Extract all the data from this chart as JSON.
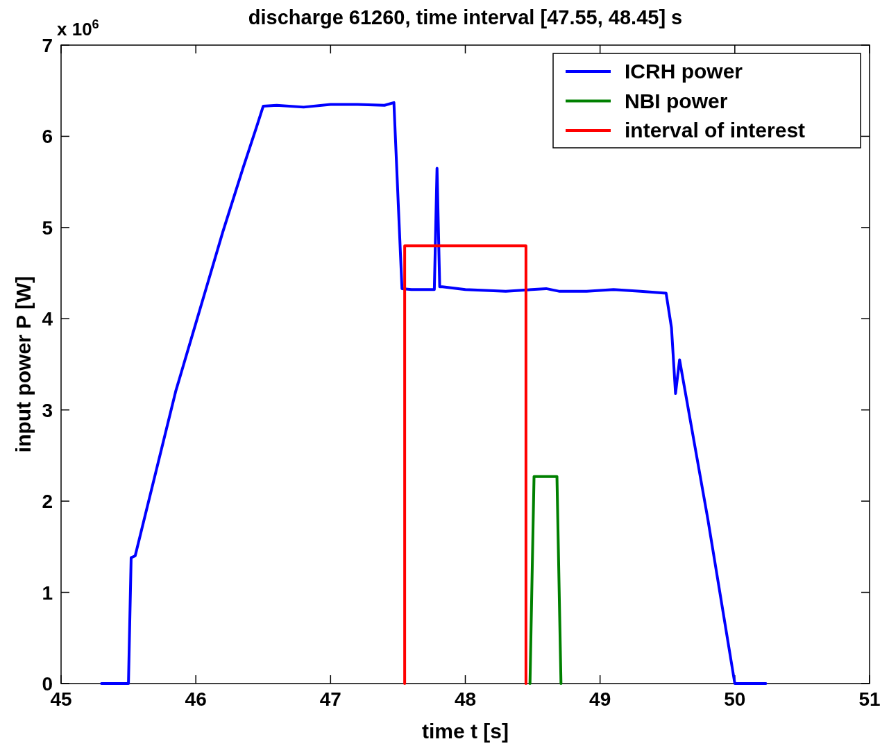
{
  "chart_data": {
    "type": "line",
    "title": "discharge 61260, time interval [47.55, 48.45] s",
    "xlabel": "time t [s]",
    "ylabel": "input power P [W]",
    "annotations": [
      "x 10$^{6}$"
    ],
    "xlim": [
      45,
      51
    ],
    "ylim": [
      0,
      7
    ],
    "xticks": [
      45,
      46,
      47,
      48,
      49,
      50,
      51
    ],
    "yticks": [
      0,
      1,
      2,
      3,
      4,
      5,
      6,
      7
    ],
    "legend": "top right",
    "series": [
      {
        "name": "ICRH power",
        "color": "#0000ff",
        "x": [
          45.3,
          45.5,
          45.52,
          45.55,
          45.7,
          45.85,
          46.0,
          46.09,
          46.2,
          46.35,
          46.45,
          46.5,
          46.6,
          46.8,
          47.0,
          47.2,
          47.4,
          47.47,
          47.51,
          47.53,
          47.6,
          47.77,
          47.79,
          47.81,
          47.83,
          48.0,
          48.3,
          48.6,
          48.7,
          48.9,
          49.1,
          49.3,
          49.49,
          49.53,
          49.56,
          49.59,
          49.62,
          49.8,
          50.0,
          50.23
        ],
        "values": [
          0,
          0,
          1.38,
          1.4,
          2.3,
          3.2,
          3.95,
          4.4,
          4.95,
          5.65,
          6.1,
          6.33,
          6.34,
          6.32,
          6.35,
          6.35,
          6.34,
          6.37,
          5.0,
          4.33,
          4.32,
          4.32,
          5.65,
          4.35,
          4.35,
          4.32,
          4.3,
          4.33,
          4.3,
          4.3,
          4.32,
          4.3,
          4.28,
          3.9,
          3.18,
          3.55,
          3.3,
          1.8,
          0,
          0
        ]
      },
      {
        "name": "NBI power",
        "color": "#008000",
        "x": [
          48.48,
          48.51,
          48.68,
          48.71
        ],
        "values": [
          0,
          2.27,
          2.27,
          0
        ]
      },
      {
        "name": "interval of interest",
        "color": "#ff0000",
        "x": [
          47.55,
          47.55,
          48.45,
          48.45
        ],
        "values": [
          0,
          4.8,
          4.8,
          0
        ]
      }
    ]
  }
}
